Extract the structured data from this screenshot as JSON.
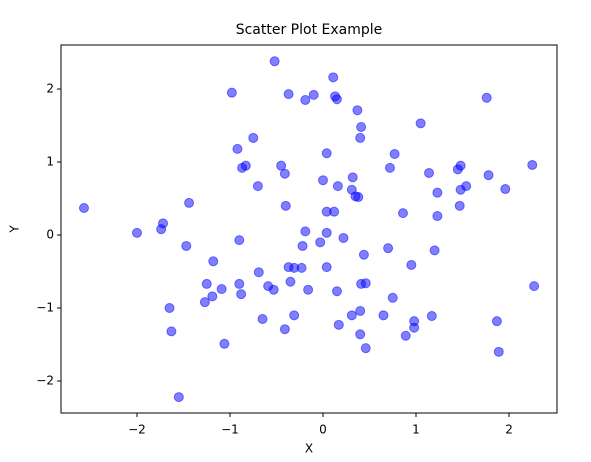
{
  "chart_data": {
    "type": "scatter",
    "title": "Scatter Plot Example",
    "x_label": "X",
    "y_label": "Y",
    "color": "#0000ff",
    "alpha": 0.5,
    "grid": false,
    "xlim": [
      -2.817,
      2.516
    ],
    "ylim": [
      -2.438,
      2.603
    ],
    "xticks": [
      {
        "value": -2,
        "label": "−2"
      },
      {
        "value": -1,
        "label": "−1"
      },
      0,
      1,
      2
    ],
    "yticks": [
      {
        "value": -2,
        "label": "−2"
      },
      {
        "value": -1,
        "label": "−1"
      },
      0,
      1,
      2
    ],
    "x": [
      -2.57,
      -2.0,
      -1.72,
      -1.74,
      -1.44,
      -1.47,
      -1.65,
      -1.63,
      -1.55,
      -1.25,
      -1.18,
      -1.19,
      -1.27,
      -1.09,
      -1.06,
      -0.98,
      -0.92,
      -0.87,
      -0.83,
      -0.75,
      -0.9,
      -0.9,
      -0.88,
      -0.7,
      -0.69,
      -0.65,
      -0.59,
      -0.53,
      -0.52,
      -0.45,
      -0.41,
      -0.4,
      -0.37,
      -0.37,
      -0.31,
      -0.35,
      -0.31,
      -0.41,
      -0.23,
      -0.22,
      -0.19,
      -0.19,
      -0.1,
      -0.16,
      -0.03,
      0.0,
      0.04,
      0.04,
      0.04,
      0.04,
      0.12,
      0.11,
      0.13,
      0.15,
      0.16,
      0.15,
      0.17,
      0.22,
      0.31,
      0.32,
      0.31,
      0.35,
      0.38,
      0.37,
      0.41,
      0.4,
      0.41,
      0.4,
      0.4,
      0.44,
      0.46,
      0.46,
      0.65,
      0.7,
      0.72,
      0.77,
      0.75,
      0.86,
      0.89,
      0.95,
      0.98,
      0.98,
      1.05,
      1.14,
      1.17,
      1.23,
      1.23,
      1.2,
      1.45,
      1.48,
      1.47,
      1.48,
      1.54,
      1.76,
      1.78,
      1.87,
      1.89,
      1.96,
      2.25,
      2.27
    ],
    "values": [
      0.37,
      0.03,
      0.16,
      0.08,
      0.44,
      -0.15,
      -1.0,
      -1.32,
      -2.22,
      -0.67,
      -0.36,
      -0.84,
      -0.92,
      -0.74,
      -1.49,
      1.95,
      1.18,
      0.92,
      0.95,
      1.33,
      -0.07,
      -0.67,
      -0.81,
      0.67,
      -0.51,
      -1.15,
      -0.7,
      -0.75,
      2.38,
      0.95,
      0.84,
      0.4,
      1.93,
      -0.44,
      -0.45,
      -0.64,
      -1.1,
      -1.29,
      -0.45,
      -0.15,
      0.05,
      1.85,
      1.92,
      -0.75,
      -0.1,
      0.75,
      -0.44,
      0.03,
      1.12,
      0.32,
      0.32,
      2.16,
      1.9,
      1.86,
      0.67,
      -0.77,
      -1.23,
      -0.04,
      0.62,
      0.79,
      -1.1,
      0.53,
      0.52,
      1.71,
      1.48,
      1.33,
      -0.67,
      -1.04,
      -1.36,
      -0.27,
      -0.66,
      -1.55,
      -1.1,
      -0.18,
      0.92,
      1.11,
      -0.86,
      0.3,
      -1.38,
      -0.41,
      -1.18,
      -1.27,
      1.53,
      0.85,
      -1.11,
      0.58,
      0.26,
      -0.21,
      0.9,
      0.95,
      0.4,
      0.62,
      0.67,
      1.88,
      0.82,
      -1.18,
      -1.6,
      0.63,
      0.96,
      -0.7
    ]
  }
}
